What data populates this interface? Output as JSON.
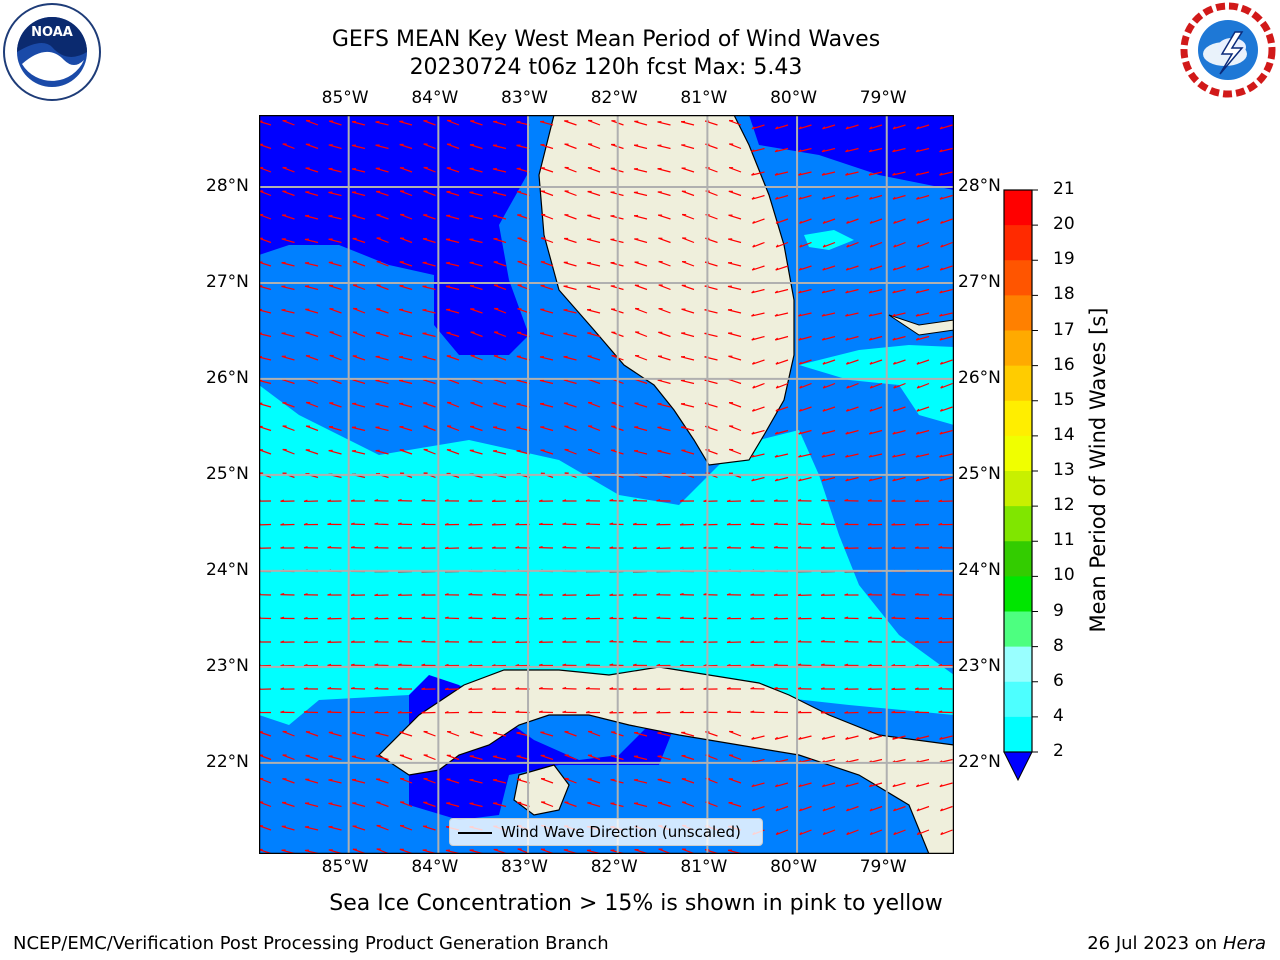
{
  "title_line1": "GEFS MEAN Key West Mean Period of Wind Waves",
  "title_line2": "20230724 t06z 120h fcst   Max: 5.43",
  "logos": {
    "left": "NOAA",
    "right": "NATIONAL WEATHER SERVICE"
  },
  "map": {
    "lon_labels": [
      "85°W",
      "84°W",
      "83°W",
      "82°W",
      "81°W",
      "80°W",
      "79°W"
    ],
    "lon_values": [
      -85,
      -84,
      -83,
      -82,
      -81,
      -80,
      -79
    ],
    "lat_labels": [
      "28°N",
      "27°N",
      "26°N",
      "25°N",
      "24°N",
      "23°N",
      "22°N"
    ],
    "lat_values": [
      28,
      27,
      26,
      25,
      24,
      23,
      22
    ],
    "extent": {
      "lon_min": -86,
      "lon_max": -78.25,
      "lat_min": 21.05,
      "lat_max": 28.75
    },
    "legend_label": "Wind Wave Direction (unscaled)"
  },
  "colorbar": {
    "label": "Mean Period of Wind Waves [s]",
    "ticks": [
      "2",
      "4",
      "6",
      "8",
      "9",
      "10",
      "11",
      "12",
      "13",
      "14",
      "15",
      "16",
      "17",
      "18",
      "19",
      "20",
      "21"
    ],
    "colors": [
      "#0000ff",
      "#0080ff",
      "#00ffff",
      "#4dffff",
      "#99ffff",
      "#4dff80",
      "#00e600",
      "#33cc00",
      "#80e600",
      "#c8f000",
      "#f0ff00",
      "#ffee00",
      "#ffcc00",
      "#ffaa00",
      "#ff8000",
      "#ff5500",
      "#ff2a00",
      "#ff0000"
    ]
  },
  "sea_ice_note": "Sea Ice Concentration > 15% is shown in pink to yellow",
  "footer_left": "NCEP/EMC/Verification Post Processing Product Generation Branch",
  "footer_right_prefix": "26 Jul 2023 on ",
  "footer_right_host": "Hera"
}
